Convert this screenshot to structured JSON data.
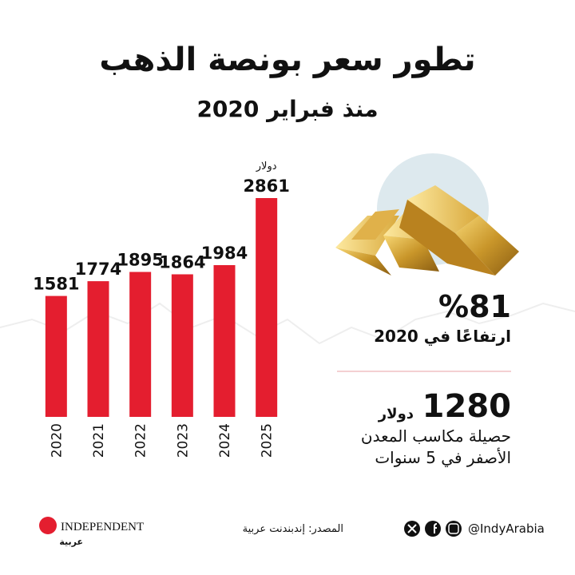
{
  "chart_data": {
    "type": "bar",
    "title": "تطور سعر بونصة الذهب",
    "subtitle": "منذ فبراير 2020",
    "categories": [
      "2020",
      "2021",
      "2022",
      "2023",
      "2024",
      "2025"
    ],
    "values": [
      1581,
      1774,
      1895,
      1864,
      1984,
      2861
    ],
    "unit": "دولار",
    "color": "#e41e2f"
  },
  "highlights": {
    "growth": {
      "value": "%81",
      "caption": "ارتفاعًا في 2020"
    },
    "gain": {
      "value": "1280",
      "unit": "دولار",
      "caption_lines": [
        "حصيلة مكاسب المعدن",
        "الأصفر في 5 سنوات"
      ]
    }
  },
  "footer": {
    "logo": "INDEPENDENT",
    "logo_sub": "عربية",
    "source": "المصدر: إندبندنت عربية",
    "handle": "@IndyArabia"
  }
}
